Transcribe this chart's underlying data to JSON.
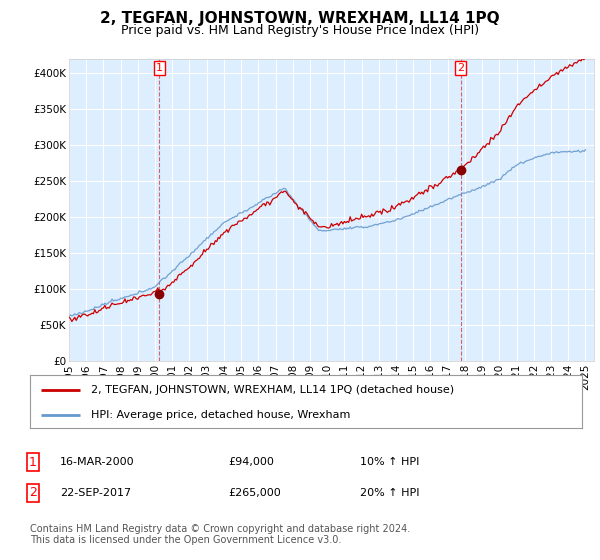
{
  "title": "2, TEGFAN, JOHNSTOWN, WREXHAM, LL14 1PQ",
  "subtitle": "Price paid vs. HM Land Registry's House Price Index (HPI)",
  "ylim": [
    0,
    400000
  ],
  "yticks": [
    0,
    50000,
    100000,
    150000,
    200000,
    250000,
    300000,
    350000,
    400000
  ],
  "ytick_labels": [
    "£0",
    "£50K",
    "£100K",
    "£150K",
    "£200K",
    "£250K",
    "£300K",
    "£350K",
    "£400K"
  ],
  "background_color": "#ffffff",
  "plot_bg_color": "#ddeeff",
  "grid_color": "#ffffff",
  "line1_color": "#cc0000",
  "line2_color": "#6699cc",
  "marker_color": "#880000",
  "vline_color": "#cc4444",
  "sale1_year": 2000.21,
  "sale1_price": 94000,
  "sale2_year": 2017.72,
  "sale2_price": 265000,
  "legend_line1": "2, TEGFAN, JOHNSTOWN, WREXHAM, LL14 1PQ (detached house)",
  "legend_line2": "HPI: Average price, detached house, Wrexham",
  "annotation1_date": "16-MAR-2000",
  "annotation1_price": "£94,000",
  "annotation1_hpi": "10% ↑ HPI",
  "annotation2_date": "22-SEP-2017",
  "annotation2_price": "£265,000",
  "annotation2_hpi": "20% ↑ HPI",
  "footer": "Contains HM Land Registry data © Crown copyright and database right 2024.\nThis data is licensed under the Open Government Licence v3.0.",
  "title_fontsize": 11,
  "subtitle_fontsize": 9,
  "tick_fontsize": 7.5,
  "legend_fontsize": 8,
  "annotation_fontsize": 8,
  "footer_fontsize": 7
}
